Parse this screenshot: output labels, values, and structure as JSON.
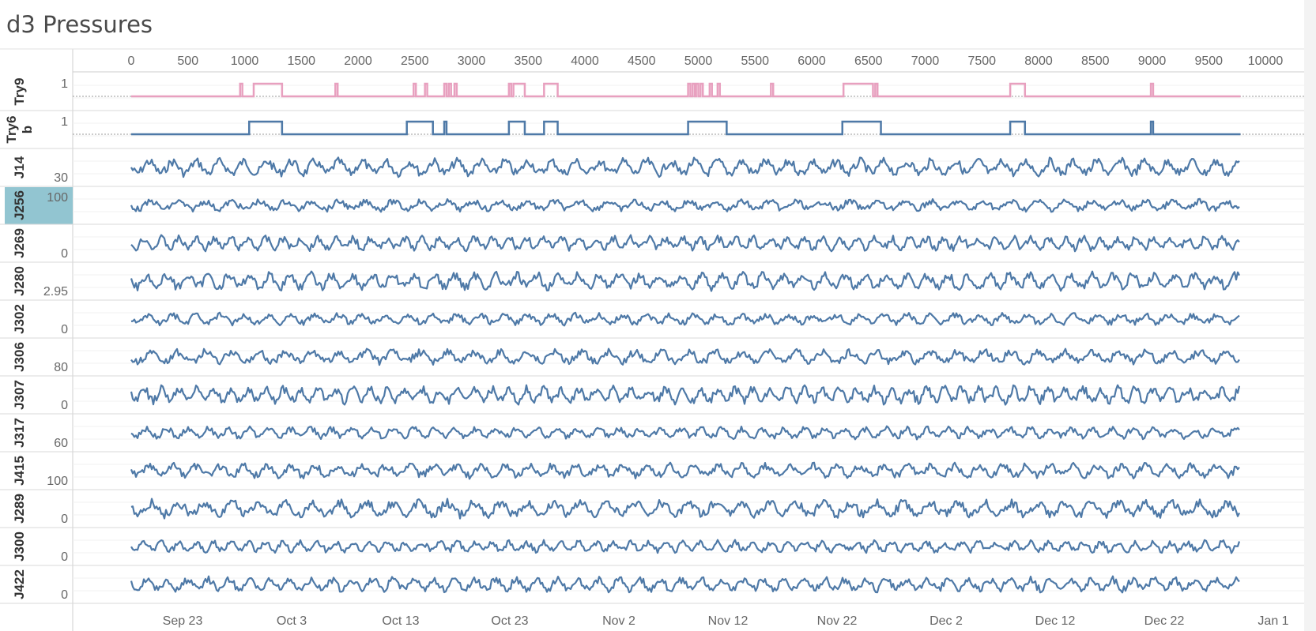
{
  "title": "d3 Pressures",
  "colors": {
    "pink": "#e8a0bf",
    "blue": "#4e79a7",
    "highlight": "#92c5d1",
    "axis_text": "#666666",
    "grid": "#dddddd"
  },
  "chart_data": {
    "type": "line",
    "top_axis": {
      "ticks": [
        "0",
        "500",
        "1000",
        "1500",
        "2000",
        "2500",
        "3000",
        "3500",
        "4000",
        "4500",
        "5000",
        "5500",
        "6000",
        "6500",
        "7000",
        "7500",
        "8000",
        "8500",
        "9000",
        "9500",
        "10000"
      ],
      "range": [
        0,
        10000
      ]
    },
    "bottom_axis": {
      "ticks": [
        "Sep 23",
        "Oct 3",
        "Oct 13",
        "Oct 23",
        "Nov 2",
        "Nov 12",
        "Nov 22",
        "Dec 2",
        "Dec 12",
        "Dec 22",
        "Jan 1"
      ]
    },
    "data_extent": [
      0,
      9780
    ],
    "rows": [
      {
        "name": "Try9",
        "name_lines": [
          "Try9"
        ],
        "tick_label": "1",
        "kind": "binary",
        "color": "pink",
        "on_intervals": [
          [
            960,
            980
          ],
          [
            1080,
            1330
          ],
          [
            1800,
            1820
          ],
          [
            2490,
            2510
          ],
          [
            2590,
            2610
          ],
          [
            2760,
            2780
          ],
          [
            2800,
            2820
          ],
          [
            2850,
            2870
          ],
          [
            3330,
            3350
          ],
          [
            3370,
            3470
          ],
          [
            3640,
            3760
          ],
          [
            4910,
            4930
          ],
          [
            4950,
            4970
          ],
          [
            4980,
            5000
          ],
          [
            5020,
            5040
          ],
          [
            5100,
            5120
          ],
          [
            5170,
            5190
          ],
          [
            5640,
            5660
          ],
          [
            6280,
            6540
          ],
          [
            6560,
            6580
          ],
          [
            7750,
            7880
          ],
          [
            8990,
            9010
          ]
        ]
      },
      {
        "name": "Try6b",
        "name_lines": [
          "Try6",
          "b"
        ],
        "tick_label": "1",
        "kind": "binary",
        "color": "blue",
        "on_intervals": [
          [
            1040,
            1330
          ],
          [
            2430,
            2660
          ],
          [
            2760,
            2780
          ],
          [
            3330,
            3470
          ],
          [
            3640,
            3760
          ],
          [
            4910,
            5250
          ],
          [
            6270,
            6610
          ],
          [
            7750,
            7880
          ],
          [
            8990,
            9010
          ]
        ]
      },
      {
        "name": "J14",
        "name_lines": [
          "J14"
        ],
        "tick_label": "30",
        "kind": "wave"
      },
      {
        "name": "J256",
        "name_lines": [
          "J256"
        ],
        "tick_label": "100",
        "kind": "wave",
        "highlight": true
      },
      {
        "name": "J269",
        "name_lines": [
          "J269"
        ],
        "tick_label": "0",
        "kind": "wave"
      },
      {
        "name": "J280",
        "name_lines": [
          "J280"
        ],
        "tick_label": "2.95",
        "kind": "wave"
      },
      {
        "name": "J302",
        "name_lines": [
          "J302"
        ],
        "tick_label": "0",
        "kind": "wave"
      },
      {
        "name": "J306",
        "name_lines": [
          "J306"
        ],
        "tick_label": "80",
        "kind": "wave"
      },
      {
        "name": "J307",
        "name_lines": [
          "J307"
        ],
        "tick_label": "0",
        "kind": "wave"
      },
      {
        "name": "J317",
        "name_lines": [
          "J317"
        ],
        "tick_label": "60",
        "kind": "wave"
      },
      {
        "name": "J415",
        "name_lines": [
          "J415"
        ],
        "tick_label": "100",
        "kind": "wave"
      },
      {
        "name": "J289",
        "name_lines": [
          "J289"
        ],
        "tick_label": "0",
        "kind": "wave"
      },
      {
        "name": "J300",
        "name_lines": [
          "J300"
        ],
        "tick_label": "0",
        "kind": "wave"
      },
      {
        "name": "J422",
        "name_lines": [
          "J422"
        ],
        "tick_label": "0",
        "kind": "wave"
      }
    ]
  }
}
